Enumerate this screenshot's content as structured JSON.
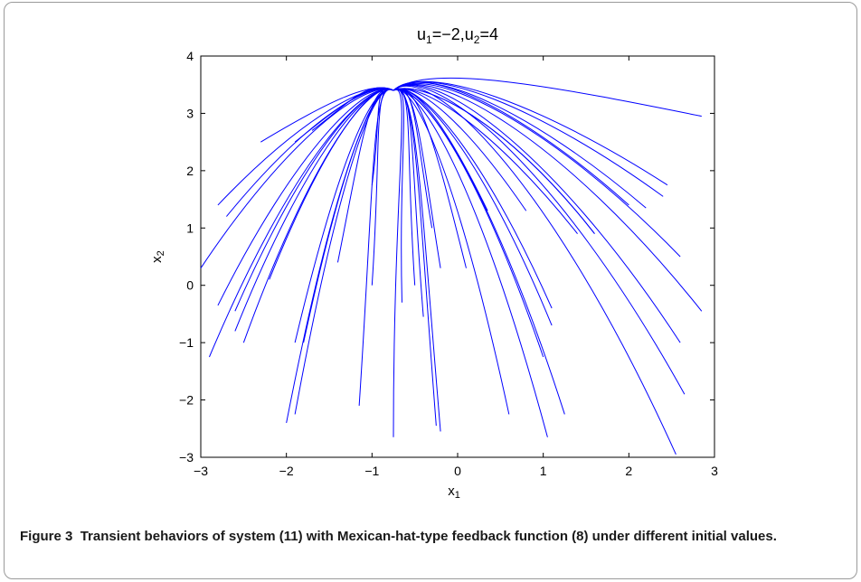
{
  "figure": {
    "caption_label": "Figure 3",
    "caption_text": "Transient behaviors of system (11) with Mexican-hat-type feedback function (8) under different initial values."
  },
  "chart_data": {
    "type": "line",
    "title": "u1=−2,u2=4",
    "title_parts": {
      "u": "u",
      "sub1": "1",
      "eq1": "=−2,",
      "sub2": "2",
      "eq2": "=4"
    },
    "xlabel": "x1",
    "xlabel_parts": {
      "base": "x",
      "sub": "1"
    },
    "ylabel": "x2",
    "ylabel_parts": {
      "base": "x",
      "sub": "2"
    },
    "xlim": [
      -3,
      3
    ],
    "ylim": [
      -3,
      4
    ],
    "xticks": [
      -3,
      -2,
      -1,
      0,
      1,
      2,
      3
    ],
    "yticks": [
      -3,
      -2,
      -1,
      0,
      1,
      2,
      3,
      4
    ],
    "xtick_labels": [
      "−3",
      "−2",
      "−1",
      "0",
      "1",
      "2",
      "3"
    ],
    "ytick_labels": [
      "−3",
      "−2",
      "−1",
      "0",
      "1",
      "2",
      "3",
      "4"
    ],
    "grid": false,
    "line_color": "#0000ff",
    "equilibrium": [
      -0.75,
      3.4
    ],
    "initial_points": [
      [
        -2.3,
        2.5
      ],
      [
        -1.9,
        2.5
      ],
      [
        -1.7,
        2.7
      ],
      [
        -2.8,
        1.4
      ],
      [
        -2.7,
        1.2
      ],
      [
        -3.0,
        0.3
      ],
      [
        -2.8,
        -0.35
      ],
      [
        -2.6,
        -0.45
      ],
      [
        -2.9,
        -1.25
      ],
      [
        -2.5,
        -1.0
      ],
      [
        -2.6,
        -0.8
      ],
      [
        -2.0,
        -2.4
      ],
      [
        -1.9,
        -2.25
      ],
      [
        -1.9,
        -1.0
      ],
      [
        -1.8,
        -1.0
      ],
      [
        -1.15,
        -2.1
      ],
      [
        -1.0,
        1.75
      ],
      [
        -0.75,
        -2.65
      ],
      [
        -0.2,
        -2.55
      ],
      [
        -0.25,
        -2.45
      ],
      [
        -0.4,
        -0.55
      ],
      [
        -0.65,
        -0.3
      ],
      [
        -0.5,
        0.0
      ],
      [
        -1.0,
        0.0
      ],
      [
        -0.2,
        0.3
      ],
      [
        0.1,
        0.3
      ],
      [
        0.35,
        1.3
      ],
      [
        0.6,
        -2.25
      ],
      [
        1.05,
        -2.65
      ],
      [
        1.25,
        -2.25
      ],
      [
        1.0,
        -1.25
      ],
      [
        1.1,
        -0.7
      ],
      [
        1.1,
        -0.4
      ],
      [
        1.4,
        0.9
      ],
      [
        1.6,
        0.9
      ],
      [
        1.6,
        0.9
      ],
      [
        2.0,
        1.4
      ],
      [
        2.4,
        1.55
      ],
      [
        2.45,
        1.75
      ],
      [
        2.6,
        0.5
      ],
      [
        2.85,
        -0.45
      ],
      [
        2.6,
        -1.0
      ],
      [
        2.65,
        -1.9
      ],
      [
        2.55,
        -2.95
      ],
      [
        2.85,
        2.95
      ],
      [
        2.2,
        1.35
      ],
      [
        0.8,
        1.3
      ],
      [
        -0.3,
        1.0
      ],
      [
        -1.4,
        0.4
      ],
      [
        -2.2,
        0.1
      ]
    ]
  }
}
